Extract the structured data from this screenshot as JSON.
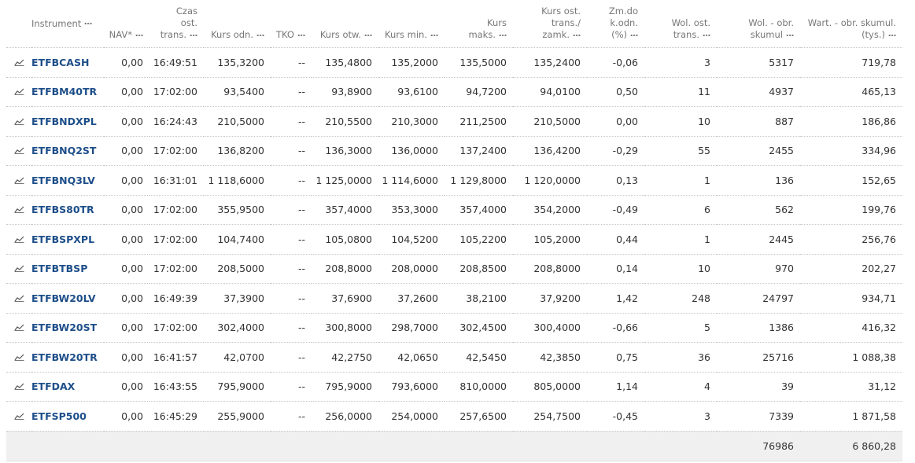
{
  "table": {
    "headers": [
      "Instrument",
      "NAV*",
      "Czas\nost.\ntrans.",
      "Kurs odn.",
      "TKO",
      "Kurs otw.",
      "Kurs min.",
      "Kurs\nmaks.",
      "Kurs ost.\ntrans./\nzamk.",
      "Zm.do\nk.odn.\n(%)",
      "Wol. ost.\ntrans.",
      "Wol. - obr.\nskumul",
      "Wart. - obr. skumul.\n(tys.)"
    ],
    "rows": [
      [
        "ETFBCASH",
        "0,00",
        "16:49:51",
        "135,3200",
        "--",
        "135,4800",
        "135,2000",
        "135,5000",
        "135,2400",
        "-0,06",
        "3",
        "5317",
        "719,78"
      ],
      [
        "ETFBM40TR",
        "0,00",
        "17:02:00",
        "93,5400",
        "--",
        "93,8900",
        "93,6100",
        "94,7200",
        "94,0100",
        "0,50",
        "11",
        "4937",
        "465,13"
      ],
      [
        "ETFBNDXPL",
        "0,00",
        "16:24:43",
        "210,5000",
        "--",
        "210,5500",
        "210,3000",
        "211,2500",
        "210,5000",
        "0,00",
        "10",
        "887",
        "186,86"
      ],
      [
        "ETFBNQ2ST",
        "0,00",
        "17:02:00",
        "136,8200",
        "--",
        "136,3000",
        "136,0000",
        "137,2400",
        "136,4200",
        "-0,29",
        "55",
        "2455",
        "334,96"
      ],
      [
        "ETFBNQ3LV",
        "0,00",
        "16:31:01",
        "1 118,6000",
        "--",
        "1 125,0000",
        "1 114,6000",
        "1 129,8000",
        "1 120,0000",
        "0,13",
        "1",
        "136",
        "152,65"
      ],
      [
        "ETFBS80TR",
        "0,00",
        "17:02:00",
        "355,9500",
        "--",
        "357,4000",
        "353,3000",
        "357,4000",
        "354,2000",
        "-0,49",
        "6",
        "562",
        "199,76"
      ],
      [
        "ETFBSPXPL",
        "0,00",
        "17:02:00",
        "104,7400",
        "--",
        "105,0800",
        "104,5200",
        "105,2200",
        "105,2000",
        "0,44",
        "1",
        "2445",
        "256,76"
      ],
      [
        "ETFBTBSP",
        "0,00",
        "17:02:00",
        "208,5000",
        "--",
        "208,8000",
        "208,0000",
        "208,8500",
        "208,8000",
        "0,14",
        "10",
        "970",
        "202,27"
      ],
      [
        "ETFBW20LV",
        "0,00",
        "16:49:39",
        "37,3900",
        "--",
        "37,6900",
        "37,2600",
        "38,2100",
        "37,9200",
        "1,42",
        "248",
        "24797",
        "934,71"
      ],
      [
        "ETFBW20ST",
        "0,00",
        "17:02:00",
        "302,4000",
        "--",
        "300,8000",
        "298,7000",
        "302,4500",
        "300,4000",
        "-0,66",
        "5",
        "1386",
        "416,32"
      ],
      [
        "ETFBW20TR",
        "0,00",
        "16:41:57",
        "42,0700",
        "--",
        "42,2750",
        "42,0650",
        "42,5450",
        "42,3850",
        "0,75",
        "36",
        "25716",
        "1 088,38"
      ],
      [
        "ETFDAX",
        "0,00",
        "16:43:55",
        "795,9000",
        "--",
        "795,9000",
        "793,6000",
        "810,0000",
        "805,0000",
        "1,14",
        "4",
        "39",
        "31,12"
      ],
      [
        "ETFSP500",
        "0,00",
        "16:45:29",
        "255,9000",
        "--",
        "256,0000",
        "254,0000",
        "257,6500",
        "254,7500",
        "-0,45",
        "3",
        "7339",
        "1 871,58"
      ]
    ],
    "footer": {
      "wol_obr": "76986",
      "wart": "6 860,28"
    }
  }
}
